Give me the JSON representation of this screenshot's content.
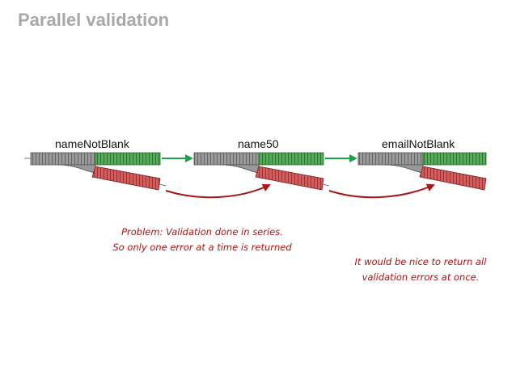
{
  "title": "Parallel validation",
  "nodes": [
    {
      "id": "n1",
      "label": "nameNotBlank"
    },
    {
      "id": "n2",
      "label": "name50"
    },
    {
      "id": "n3",
      "label": "emailNotBlank"
    }
  ],
  "edges": [
    {
      "from": "n1",
      "to": "n2",
      "type": "success"
    },
    {
      "from": "n2",
      "to": "n3",
      "type": "success"
    },
    {
      "from": "n1",
      "to": "n2",
      "type": "failure"
    },
    {
      "from": "n2",
      "to": "n3",
      "type": "failure"
    }
  ],
  "notes": {
    "problem": [
      "Problem: Validation done in series.",
      "So only one error at a time is returned"
    ],
    "wish": [
      "It would be nice to return all",
      "validation errors at once."
    ]
  },
  "colors": {
    "success_track": "#4caf50",
    "failure_track": "#e05555",
    "neutral_track": "#9a9a9a",
    "success_arrow": "#1aa34a",
    "failure_arrow": "#a81818",
    "note_text": "#b01010"
  }
}
